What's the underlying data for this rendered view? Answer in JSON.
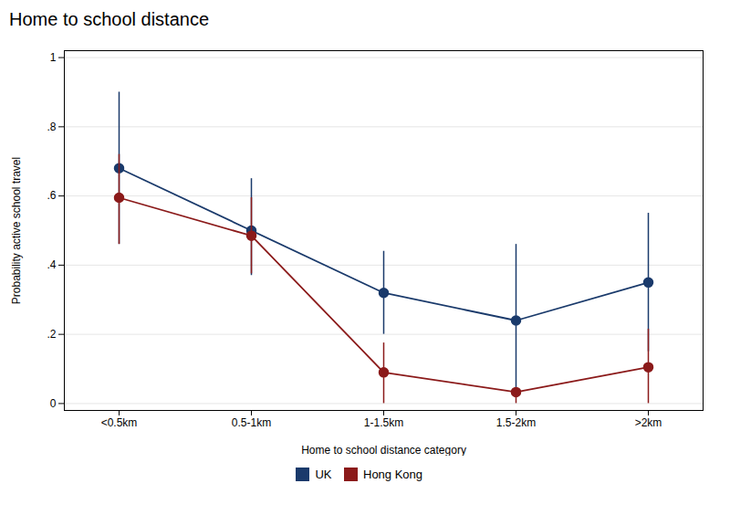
{
  "chart_data": {
    "type": "line",
    "title": "Home to school distance",
    "xlabel": "Home to school distance category",
    "ylabel": "Probability active school travel",
    "categories": [
      "<0.5km",
      "0.5-1km",
      "1-1.5km",
      "1.5-2km",
      ">2km"
    ],
    "series": [
      {
        "name": "UK",
        "color": "#1a3a6b",
        "marker": "circle",
        "values": [
          0.68,
          0.5,
          0.32,
          0.24,
          0.35
        ],
        "lower": [
          0.46,
          0.37,
          0.2,
          0.02,
          0.15
        ],
        "upper": [
          0.9,
          0.65,
          0.44,
          0.46,
          0.55
        ]
      },
      {
        "name": "Hong Kong",
        "color": "#8b1a1a",
        "marker": "circle",
        "values": [
          0.595,
          0.485,
          0.09,
          0.033,
          0.105
        ],
        "lower": [
          0.46,
          0.375,
          0.0,
          0.0,
          0.0
        ],
        "upper": [
          0.72,
          0.595,
          0.175,
          0.045,
          0.215
        ]
      }
    ],
    "ylim": [
      -0.02,
      1.02
    ],
    "yticks": [
      0,
      {
        "value": 0.2,
        "label": ".2"
      },
      {
        "value": 0.4,
        "label": ".4"
      },
      {
        "value": 0.6,
        "label": ".6"
      },
      {
        "value": 0.8,
        "label": ".8"
      },
      1
    ],
    "grid": true,
    "legend": "bottom"
  }
}
